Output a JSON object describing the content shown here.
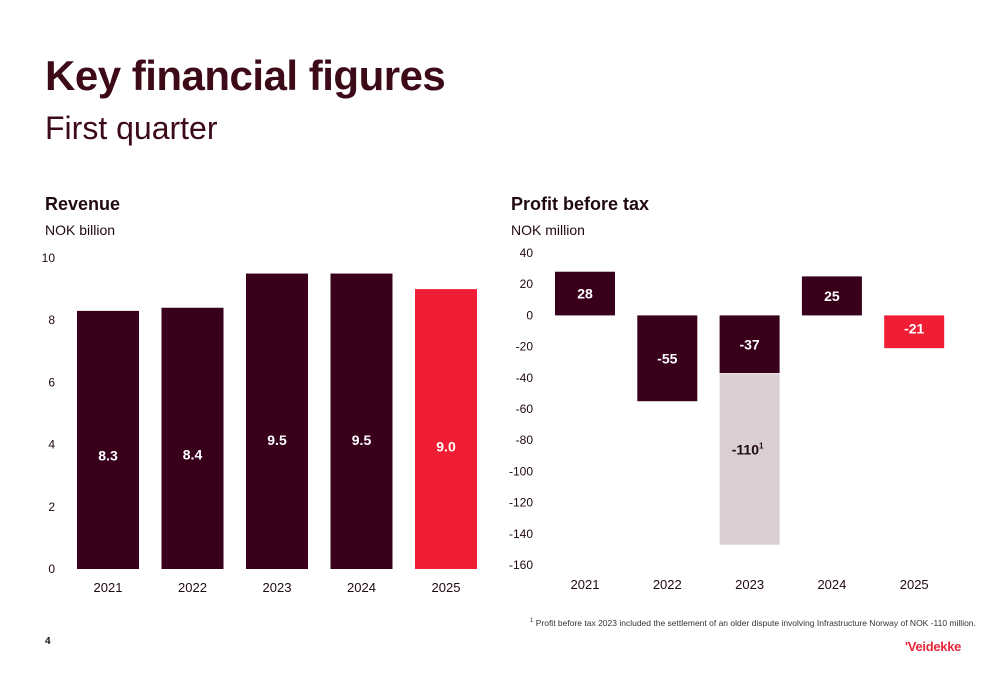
{
  "header": {
    "title": "Key financial figures",
    "subtitle": "First quarter"
  },
  "colors": {
    "dark_bar": "#38001a",
    "highlight_bar": "#f01e34",
    "adjusted_bar": "#d9cfd3",
    "text_dark": "#1f0a10"
  },
  "chart_data": [
    {
      "type": "bar",
      "title": "Revenue",
      "unit": "NOK billion",
      "categories": [
        "2021",
        "2022",
        "2023",
        "2024",
        "2025"
      ],
      "values": [
        8.3,
        8.4,
        9.5,
        9.5,
        9.0
      ],
      "labels": [
        "8.3",
        "8.4",
        "9.5",
        "9.5",
        "9.0"
      ],
      "highlight": [
        false,
        false,
        false,
        false,
        true
      ],
      "ylim": [
        0,
        10
      ],
      "yticks": [
        0,
        2,
        4,
        6,
        8,
        10
      ],
      "grid": false,
      "legend": "none"
    },
    {
      "type": "bar",
      "title": "Profit before tax",
      "unit": "NOK million",
      "categories": [
        "2021",
        "2022",
        "2023",
        "2024",
        "2025"
      ],
      "values": [
        28,
        -55,
        -37,
        25,
        -21
      ],
      "labels": [
        "28",
        "-55",
        "-37",
        "25",
        "-21"
      ],
      "highlight": [
        false,
        false,
        false,
        false,
        true
      ],
      "extra_segment": {
        "category": "2023",
        "value": -110,
        "label": "-110",
        "footnote_marker": "1"
      },
      "ylim": [
        -160,
        40
      ],
      "yticks": [
        40,
        20,
        0,
        -20,
        -40,
        -60,
        -80,
        -100,
        -120,
        -140,
        -160
      ],
      "grid": false,
      "legend": "none"
    }
  ],
  "footnote": {
    "marker": "1",
    "text": "Profit before tax 2023 included the settlement of an older dispute involving Infrastructure Norway of NOK -110 million."
  },
  "footer": {
    "page_number": "4",
    "logo_text": "Veidekke"
  }
}
